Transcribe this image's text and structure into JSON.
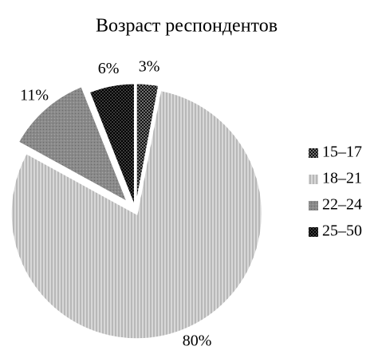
{
  "chart_data": {
    "type": "pie",
    "title": "Возраст респондентов",
    "categories": [
      "15–17",
      "18–21",
      "22–24",
      "25–50"
    ],
    "values": [
      3,
      80,
      11,
      6
    ],
    "value_labels": [
      "3%",
      "80%",
      "11%",
      "6%"
    ],
    "colors": [
      "#111111",
      "#d8d8d8",
      "#8a8a8a",
      "#3a3a3a"
    ],
    "legend": "right"
  }
}
